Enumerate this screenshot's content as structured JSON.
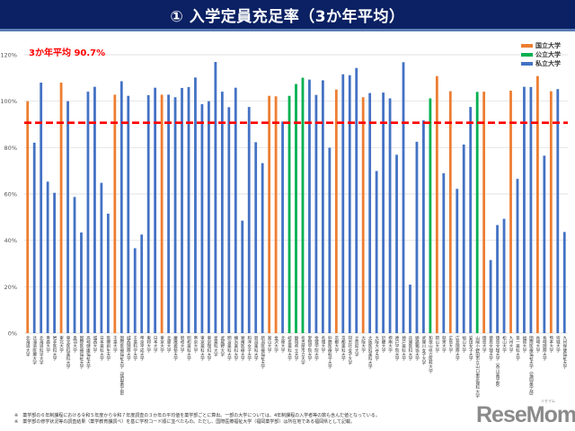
{
  "header": {
    "title": "① 入学定員充足率（3か年平均）"
  },
  "chart_data": {
    "type": "bar",
    "title": "",
    "xlabel": "",
    "ylabel": "",
    "ylim": [
      0,
      120
    ],
    "yticks": [
      "0%",
      "20%",
      "40%",
      "60%",
      "80%",
      "100%",
      "120%"
    ],
    "grid": true,
    "legend_position": "top-right",
    "legend": [
      {
        "name": "国立大学",
        "color": "#ed7d31"
      },
      {
        "name": "公立大学",
        "color": "#00b050"
      },
      {
        "name": "私立大学",
        "color": "#4472c4"
      }
    ],
    "average": {
      "label": "3か年平均  90.7%",
      "value": 90.7,
      "color": "#ff0000"
    },
    "categories": [
      "北海道大学",
      "北海道医療大学",
      "北海道科学大学",
      "青森大学",
      "岩手医科大学",
      "東北大学",
      "東北医科薬科大学",
      "奥羽大学",
      "国際医療福祉大学",
      "高崎健康福祉大学",
      "城西大学",
      "日本薬科大学",
      "医療創生大学",
      "千葉大学",
      "国際医療福祉大学（成田薬学部）",
      "城西国際大学",
      "千葉科学大学",
      "帝京平成大学",
      "東邦大学",
      "日本大学",
      "東京大学",
      "北里大学",
      "慶應義塾大学",
      "昭和大学",
      "昭和薬科大学",
      "帝京大学",
      "東京薬科大学",
      "東京理科大学",
      "星薬科大学",
      "武蔵野大学",
      "明治薬科大学",
      "横浜薬科大学",
      "湘南医療大学",
      "和洋女子大学",
      "新潟薬科大学",
      "新潟医療福祉大学",
      "富山大学",
      "金沢大学",
      "北陸大学",
      "岐阜薬科大学",
      "静岡県立大学",
      "名古屋市立大学",
      "愛知学院大学",
      "金城学院大学",
      "名城大学",
      "鈴鹿医療科学大学",
      "京都大学",
      "京都薬科大学",
      "同志社女子大学",
      "立命館大学",
      "大阪大学",
      "大阪医科薬科大学",
      "大阪大谷大学",
      "近畿大学",
      "摂南大学",
      "神戸学院大学",
      "神戸薬科大学",
      "兵庫医科大学",
      "姫路獨協大学",
      "武庫川女子大学",
      "和歌山県立医科大学",
      "岡山大学",
      "就実大学",
      "広島大学",
      "広島国際大学",
      "福山大学",
      "安田女子大学",
      "山陽小野田市立山口東京理科大学",
      "徳島大学",
      "徳島文理大学",
      "徳島文理大学（香川薬学部）",
      "松山大学",
      "九州大学",
      "第一薬科大学",
      "福岡大学",
      "国際医療福祉大学（福岡薬学部）",
      "長崎大学",
      "長崎国際大学",
      "熊本大学",
      "崇城大学",
      "九州保健福祉大学"
    ],
    "types": [
      "国立",
      "私立",
      "私立",
      "私立",
      "私立",
      "国立",
      "私立",
      "私立",
      "私立",
      "私立",
      "私立",
      "私立",
      "私立",
      "国立",
      "私立",
      "私立",
      "私立",
      "私立",
      "私立",
      "私立",
      "国立",
      "私立",
      "私立",
      "私立",
      "私立",
      "私立",
      "私立",
      "私立",
      "私立",
      "私立",
      "私立",
      "私立",
      "私立",
      "私立",
      "私立",
      "私立",
      "国立",
      "国立",
      "私立",
      "公立",
      "公立",
      "公立",
      "私立",
      "私立",
      "私立",
      "私立",
      "国立",
      "私立",
      "私立",
      "私立",
      "国立",
      "私立",
      "私立",
      "私立",
      "私立",
      "私立",
      "私立",
      "私立",
      "私立",
      "私立",
      "公立",
      "国立",
      "私立",
      "国立",
      "私立",
      "私立",
      "私立",
      "公立",
      "国立",
      "私立",
      "私立",
      "私立",
      "国立",
      "私立",
      "私立",
      "私立",
      "国立",
      "私立",
      "国立",
      "私立",
      "私立"
    ],
    "values": [
      100,
      82.1,
      108,
      65.3,
      60.5,
      108,
      100,
      58.7,
      43.4,
      104.1,
      106.2,
      64.8,
      51.5,
      102.8,
      108.6,
      102.3,
      36.6,
      42.5,
      102.6,
      105.8,
      102.8,
      102.8,
      101.7,
      105.7,
      106.1,
      110.2,
      98.7,
      100,
      116.9,
      104.1,
      97.4,
      105.8,
      48.5,
      97.5,
      82.3,
      73.3,
      102.3,
      102.1,
      91.2,
      102.3,
      107.4,
      110.1,
      109.3,
      102.7,
      109,
      79.9,
      105,
      111.6,
      111.2,
      114.3,
      101.7,
      103.5,
      69.9,
      103.7,
      101.2,
      76.9,
      116.8,
      20.9,
      82.5,
      91.7,
      101.2,
      110.8,
      68.9,
      104.3,
      62.2,
      81.3,
      97.5,
      104,
      104.1,
      31.5,
      46.6,
      49.3,
      104.5,
      66.5,
      106.2,
      106.1,
      110.8,
      76.5,
      104.3,
      105.2,
      43.6
    ]
  },
  "footnotes": [
    "※　薬学部の６年制課程における令和５年度から令和７年度調査の３か年の平均値を薬学部ごとに算出。一部の大学については、4年制課程の入学者等の数も含んだ値となっている。",
    "※　薬学部の修学状況等の調査結果（薬学教育課調べ）を基に学校コード順に並べたもの。ただし、国際医療福祉大学（福岡薬学部）は所在地である福岡県として記載。"
  ],
  "logo": {
    "text": "ReseMom",
    "ruby": "リセマム"
  }
}
